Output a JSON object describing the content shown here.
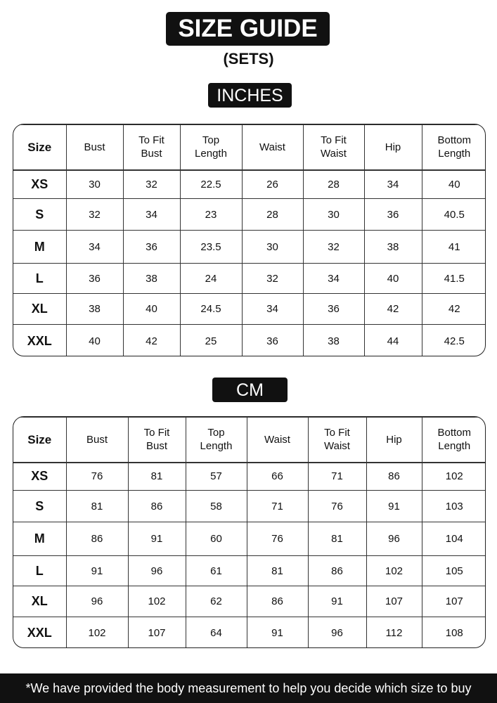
{
  "title": "SIZE GUIDE",
  "subtitle": "(SETS)",
  "headers": [
    "Size",
    "Bust",
    "To Fit\nBust",
    "Top\nLength",
    "Waist",
    "To Fit\nWaist",
    "Hip",
    "Bottom\nLength"
  ],
  "inches": {
    "label": "INCHES",
    "rows": [
      [
        "XS",
        "30",
        "32",
        "22.5",
        "26",
        "28",
        "34",
        "40"
      ],
      [
        "S",
        "32",
        "34",
        "23",
        "28",
        "30",
        "36",
        "40.5"
      ],
      [
        "M",
        "34",
        "36",
        "23.5",
        "30",
        "32",
        "38",
        "41"
      ],
      [
        "L",
        "36",
        "38",
        "24",
        "32",
        "34",
        "40",
        "41.5"
      ],
      [
        "XL",
        "38",
        "40",
        "24.5",
        "34",
        "36",
        "42",
        "42"
      ],
      [
        "XXL",
        "40",
        "42",
        "25",
        "36",
        "38",
        "44",
        "42.5"
      ]
    ]
  },
  "cm": {
    "label": "CM",
    "rows": [
      [
        "XS",
        "76",
        "81",
        "57",
        "66",
        "71",
        "86",
        "102"
      ],
      [
        "S",
        "81",
        "86",
        "58",
        "71",
        "76",
        "91",
        "103"
      ],
      [
        "M",
        "86",
        "91",
        "60",
        "76",
        "81",
        "96",
        "104"
      ],
      [
        "L",
        "91",
        "96",
        "61",
        "81",
        "86",
        "102",
        "105"
      ],
      [
        "XL",
        "96",
        "102",
        "62",
        "86",
        "91",
        "107",
        "107"
      ],
      [
        "XXL",
        "102",
        "107",
        "64",
        "91",
        "96",
        "112",
        "108"
      ]
    ]
  },
  "footer": "*We have provided the body measurement to help you decide which size to buy"
}
